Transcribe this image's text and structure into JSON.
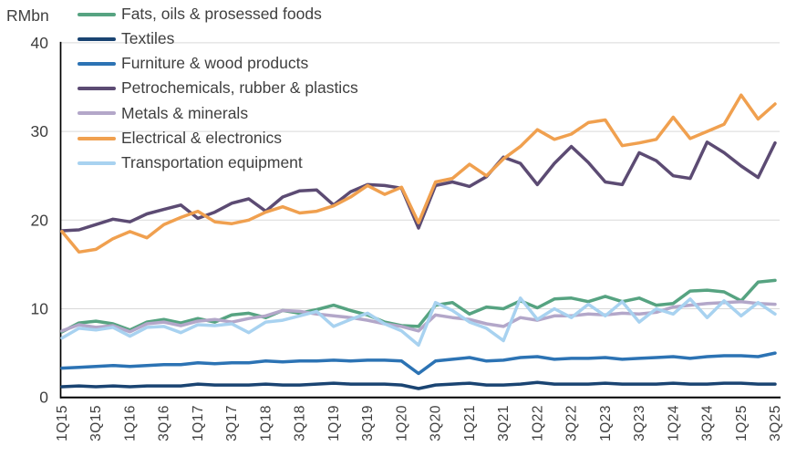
{
  "chart_data": {
    "type": "line",
    "title": "",
    "y_axis_unit_label": "RMbn",
    "xlabel": "",
    "ylabel": "",
    "ylim": [
      0,
      40
    ],
    "yticks": [
      0,
      10,
      20,
      30,
      40
    ],
    "grid": "horizontal-gridlines-on",
    "legend_position": "top-left-overlay",
    "x_tick_labels": [
      "1Q15",
      "3Q15",
      "1Q16",
      "3Q16",
      "1Q17",
      "3Q17",
      "1Q18",
      "3Q18",
      "1Q19",
      "3Q19",
      "1Q20",
      "3Q20",
      "1Q21",
      "3Q21",
      "1Q22",
      "3Q22",
      "1Q23",
      "3Q23",
      "1Q24",
      "3Q24",
      "1Q25",
      "3Q25"
    ],
    "x": [
      "1Q15",
      "2Q15",
      "3Q15",
      "4Q15",
      "1Q16",
      "2Q16",
      "3Q16",
      "4Q16",
      "1Q17",
      "2Q17",
      "3Q17",
      "4Q17",
      "1Q18",
      "2Q18",
      "3Q18",
      "4Q18",
      "1Q19",
      "2Q19",
      "3Q19",
      "4Q19",
      "1Q20",
      "2Q20",
      "3Q20",
      "4Q20",
      "1Q21",
      "2Q21",
      "3Q21",
      "4Q21",
      "1Q22",
      "2Q22",
      "3Q22",
      "4Q22",
      "1Q23",
      "2Q23",
      "3Q23",
      "4Q23",
      "1Q24",
      "2Q24",
      "3Q24",
      "4Q24",
      "1Q25",
      "2Q25",
      "3Q25"
    ],
    "series": [
      {
        "name": "Fats, oils & prosessed foods",
        "color": "#56A381",
        "values": [
          7.4,
          8.4,
          8.6,
          8.3,
          7.6,
          8.5,
          8.8,
          8.4,
          8.9,
          8.5,
          9.3,
          9.5,
          9.0,
          9.8,
          9.5,
          9.9,
          10.4,
          9.8,
          9.3,
          8.5,
          8.1,
          8.0,
          10.4,
          10.7,
          9.4,
          10.2,
          10.0,
          10.9,
          10.1,
          11.1,
          11.2,
          10.8,
          11.4,
          10.8,
          11.2,
          10.4,
          10.6,
          12.0,
          12.1,
          11.9,
          10.9,
          13.0,
          13.2
        ]
      },
      {
        "name": "Textiles",
        "color": "#1A4472",
        "values": [
          1.2,
          1.3,
          1.2,
          1.3,
          1.2,
          1.3,
          1.3,
          1.3,
          1.5,
          1.4,
          1.4,
          1.4,
          1.5,
          1.4,
          1.4,
          1.5,
          1.6,
          1.5,
          1.5,
          1.5,
          1.4,
          1.0,
          1.4,
          1.5,
          1.6,
          1.4,
          1.4,
          1.5,
          1.7,
          1.5,
          1.5,
          1.5,
          1.6,
          1.5,
          1.5,
          1.5,
          1.6,
          1.5,
          1.5,
          1.6,
          1.6,
          1.5,
          1.5
        ]
      },
      {
        "name": "Furniture & wood products",
        "color": "#2C73B4",
        "values": [
          3.3,
          3.4,
          3.5,
          3.6,
          3.5,
          3.6,
          3.7,
          3.7,
          3.9,
          3.8,
          3.9,
          3.9,
          4.1,
          4.0,
          4.1,
          4.1,
          4.2,
          4.1,
          4.2,
          4.2,
          4.1,
          2.7,
          4.1,
          4.3,
          4.5,
          4.1,
          4.2,
          4.5,
          4.6,
          4.3,
          4.4,
          4.4,
          4.5,
          4.3,
          4.4,
          4.5,
          4.6,
          4.4,
          4.6,
          4.7,
          4.7,
          4.6,
          5.0
        ]
      },
      {
        "name": "Petrochemicals, rubber & plastics",
        "color": "#5C4B73",
        "values": [
          18.8,
          18.9,
          19.5,
          20.1,
          19.8,
          20.7,
          21.2,
          21.7,
          20.2,
          20.9,
          21.9,
          22.4,
          21.0,
          22.6,
          23.3,
          23.4,
          21.7,
          23.2,
          24.0,
          23.9,
          23.6,
          19.1,
          23.9,
          24.3,
          23.8,
          24.9,
          27.1,
          26.4,
          24.0,
          26.4,
          28.3,
          26.5,
          24.3,
          24.0,
          27.6,
          26.7,
          25.0,
          24.7,
          28.8,
          27.6,
          26.1,
          24.8,
          28.7
        ]
      },
      {
        "name": "Metals & minerals",
        "color": "#B3A7C9",
        "values": [
          7.5,
          8.2,
          7.9,
          8.1,
          7.4,
          8.3,
          8.5,
          8.1,
          8.6,
          8.8,
          8.5,
          8.9,
          9.2,
          9.8,
          9.7,
          9.4,
          9.2,
          9.0,
          8.7,
          8.3,
          8.0,
          7.5,
          9.3,
          9.0,
          8.8,
          8.3,
          8.0,
          9.0,
          8.7,
          9.2,
          9.2,
          9.4,
          9.3,
          9.5,
          9.4,
          9.6,
          10.2,
          10.4,
          10.6,
          10.7,
          10.8,
          10.6,
          10.5
        ]
      },
      {
        "name": "Electrical & electronics",
        "color": "#F0A04F",
        "values": [
          18.7,
          16.4,
          16.7,
          17.9,
          18.7,
          18.0,
          19.5,
          20.3,
          21.0,
          19.8,
          19.6,
          20.0,
          20.9,
          21.5,
          20.8,
          21.0,
          21.6,
          22.6,
          23.9,
          22.9,
          23.7,
          19.7,
          24.3,
          24.7,
          26.3,
          25.0,
          26.9,
          28.3,
          30.2,
          29.1,
          29.7,
          31.0,
          31.3,
          28.4,
          28.7,
          29.1,
          31.6,
          29.2,
          30.0,
          30.8,
          34.1,
          31.4,
          33.1
        ]
      },
      {
        "name": "Transportation equipment",
        "color": "#A8D2F0",
        "values": [
          6.7,
          7.8,
          7.6,
          7.9,
          6.9,
          7.9,
          8.0,
          7.3,
          8.2,
          8.1,
          8.3,
          7.3,
          8.5,
          8.7,
          9.2,
          9.7,
          8.0,
          8.8,
          9.5,
          8.3,
          7.5,
          5.9,
          10.7,
          9.8,
          8.5,
          7.8,
          6.4,
          11.2,
          8.8,
          10.0,
          9.0,
          10.5,
          9.2,
          10.8,
          8.5,
          10.0,
          9.4,
          11.1,
          9.0,
          10.9,
          9.2,
          10.7,
          9.4
        ]
      }
    ],
    "style": {
      "gridline_color": "#D9D9D9",
      "axis_color": "#000000",
      "tick_label_color": "#3F3F3F",
      "background_color": "#FFFFFF",
      "line_width": 3.5
    }
  }
}
